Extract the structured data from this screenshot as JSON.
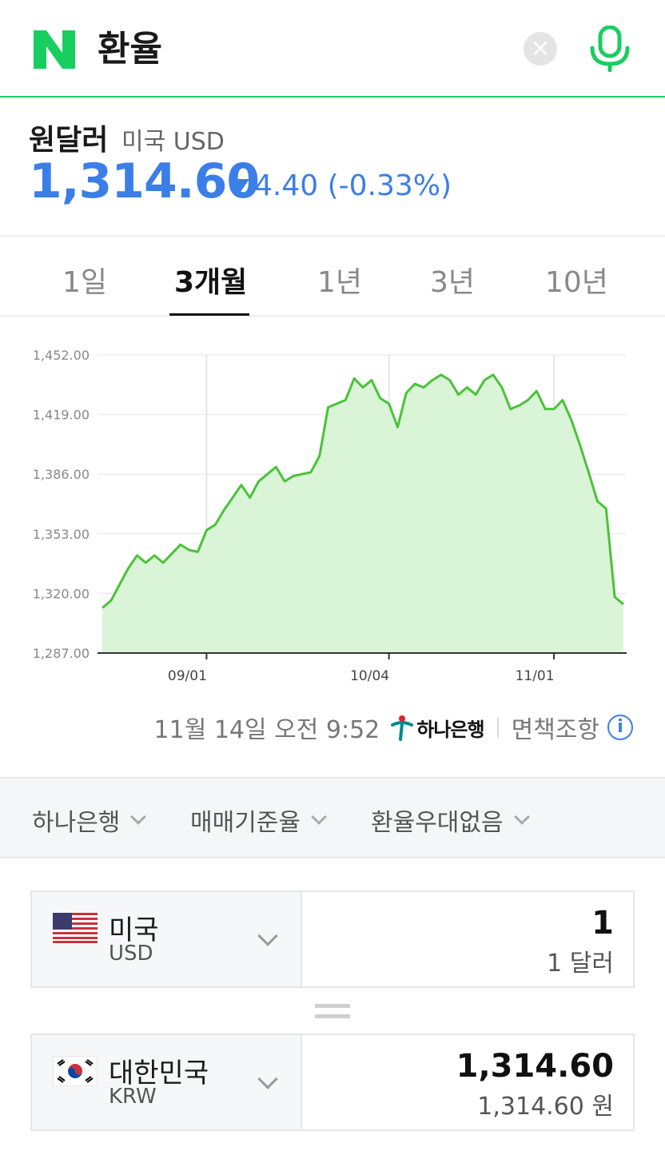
{
  "search": {
    "query": "환율"
  },
  "rate": {
    "pair_name": "원달러",
    "pair_sub": "미국 USD",
    "value": "1,314.60",
    "change": "4.40 (-0.33%)",
    "direction": "down",
    "color": "#3b7ee8"
  },
  "tabs": [
    {
      "label": "1일",
      "active": false
    },
    {
      "label": "3개월",
      "active": true
    },
    {
      "label": "1년",
      "active": false
    },
    {
      "label": "3년",
      "active": false
    },
    {
      "label": "10년",
      "active": false
    }
  ],
  "chart_data": {
    "type": "area",
    "title": "",
    "xlabel": "",
    "ylabel": "",
    "ylim": [
      1287,
      1452
    ],
    "yticks": [
      "1,452.00",
      "1,419.00",
      "1,386.00",
      "1,353.00",
      "1,320.00",
      "1,287.00"
    ],
    "xticks": [
      "09/01",
      "10/04",
      "11/01"
    ],
    "grid": true,
    "line_color": "#4cc23a",
    "fill_color": "#d9f4d6",
    "series": [
      {
        "values": [
          1312,
          1316,
          1325,
          1334,
          1341,
          1337,
          1341,
          1337,
          1342,
          1347,
          1344,
          1343,
          1355,
          1358,
          1366,
          1373,
          1380,
          1373,
          1382,
          1386,
          1390,
          1382,
          1385,
          1386,
          1387,
          1396,
          1423,
          1425,
          1427,
          1439,
          1434,
          1438,
          1428,
          1425,
          1412,
          1431,
          1436,
          1434,
          1438,
          1441,
          1438,
          1430,
          1434,
          1430,
          1438,
          1441,
          1434,
          1422,
          1424,
          1427,
          1432,
          1422,
          1422,
          1427,
          1416,
          1402,
          1387,
          1371,
          1367,
          1318,
          1314
        ]
      }
    ]
  },
  "source": {
    "timestamp": "11월 14일 오전 9:52",
    "bank": "하나은행",
    "disclaimer": "면책조항"
  },
  "filters": [
    {
      "label": "하나은행"
    },
    {
      "label": "매매기준율"
    },
    {
      "label": "환율우대없음"
    }
  ],
  "converter": {
    "from": {
      "country": "미국",
      "code": "USD",
      "amount": "1",
      "amount_sub": "1 달러"
    },
    "to": {
      "country": "대한민국",
      "code": "KRW",
      "amount": "1,314.60",
      "amount_sub": "1,314.60 원"
    }
  }
}
